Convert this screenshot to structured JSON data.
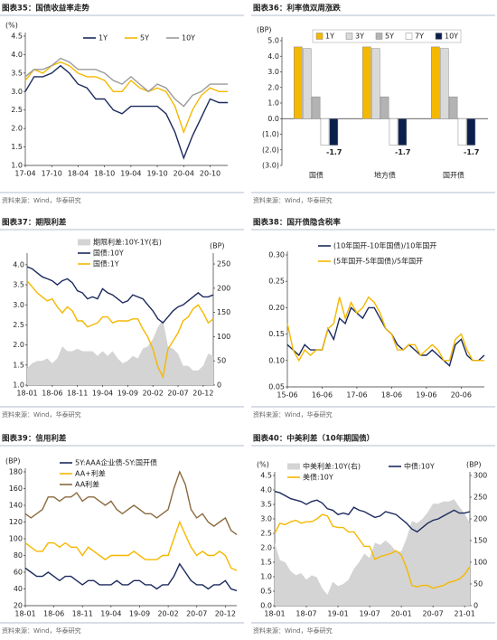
{
  "chart_data": [
    {
      "type": "line",
      "title": "图表35：国债收益率走势",
      "source": "资料来源：Wind，华泰研究",
      "ylabel": "(%)",
      "x": [
        "17-04",
        "17-06",
        "17-08",
        "17-10",
        "17-12",
        "18-02",
        "18-04",
        "18-06",
        "18-08",
        "18-10",
        "18-12",
        "19-02",
        "19-04",
        "19-06",
        "19-08",
        "19-10",
        "19-12",
        "20-02",
        "20-04",
        "20-06",
        "20-08",
        "20-10",
        "20-12",
        "21-02"
      ],
      "xticks": [
        "17-04",
        "17-10",
        "18-04",
        "18-10",
        "19-04",
        "19-10",
        "20-04",
        "20-10"
      ],
      "ylim": [
        1,
        4.5
      ],
      "yticks": [
        {
          "value": 1,
          "label": "1.0"
        },
        1.5,
        {
          "value": 2,
          "label": "2.0"
        },
        2.5,
        {
          "value": 3,
          "label": "3.0"
        },
        3.5,
        {
          "value": 4,
          "label": "4.0"
        },
        4.5
      ],
      "series": [
        {
          "name": "1Y",
          "color": "#1c2a5e",
          "values": [
            3.0,
            3.4,
            3.4,
            3.5,
            3.7,
            3.5,
            3.2,
            3.1,
            2.8,
            2.8,
            2.5,
            2.4,
            2.6,
            2.6,
            2.6,
            2.6,
            2.4,
            1.9,
            1.2,
            1.8,
            2.3,
            2.8,
            2.7,
            2.7
          ]
        },
        {
          "name": "5Y",
          "color": "#f5b800",
          "values": [
            3.3,
            3.6,
            3.5,
            3.7,
            3.8,
            3.7,
            3.5,
            3.4,
            3.4,
            3.3,
            3.0,
            3.0,
            3.3,
            3.1,
            3.0,
            3.1,
            3.0,
            2.6,
            1.9,
            2.5,
            2.9,
            3.1,
            3.0,
            3.0
          ]
        },
        {
          "name": "10Y",
          "color": "#9a9a9a",
          "values": [
            3.4,
            3.6,
            3.6,
            3.7,
            3.9,
            3.8,
            3.6,
            3.6,
            3.6,
            3.5,
            3.3,
            3.2,
            3.4,
            3.2,
            3.0,
            3.2,
            3.1,
            2.8,
            2.6,
            2.9,
            3.0,
            3.2,
            3.2,
            3.2
          ]
        }
      ]
    },
    {
      "type": "bar",
      "title": "图表36：利率债双周涨跌",
      "source": "资料来源：Wind，华泰研究",
      "ylabel": "(BP)",
      "categories": [
        "国债",
        "地方债",
        "国开债"
      ],
      "ylim": [
        -3,
        5
      ],
      "yticks": [
        {
          "value": 5,
          "label": "5.0"
        },
        {
          "value": 4,
          "label": "4.0"
        },
        {
          "value": 3,
          "label": "3.0"
        },
        {
          "value": 2,
          "label": "2.0"
        },
        {
          "value": 1,
          "label": "1.0"
        },
        {
          "value": 0,
          "label": "0.0"
        },
        {
          "value": -1,
          "label": "(1.0)"
        },
        {
          "value": -2,
          "label": "(2.0)"
        },
        {
          "value": -3,
          "label": "(3.0)"
        }
      ],
      "series": [
        {
          "name": "1Y",
          "color": "#f5b800",
          "values": [
            4.6,
            4.6,
            4.6
          ]
        },
        {
          "name": "3Y",
          "color": "#d9d9d9",
          "values": [
            4.5,
            4.5,
            4.5
          ]
        },
        {
          "name": "5Y",
          "color": "#b3b3b3",
          "values": [
            1.4,
            1.4,
            1.4
          ]
        },
        {
          "name": "7Y",
          "color": "#ffffff",
          "values": [
            -1.7,
            -1.7,
            -1.7
          ]
        },
        {
          "name": "10Y",
          "color": "#0b1f4d",
          "values": [
            -1.7,
            -1.7,
            -1.7
          ],
          "data_labels": true
        }
      ]
    },
    {
      "type": "line",
      "title": "图表37：期限利差",
      "source": "资料来源：Wind，华泰研究",
      "y2label": "(BP)",
      "x": [
        "18-01",
        "18-02",
        "18-03",
        "18-04",
        "18-05",
        "18-06",
        "18-07",
        "18-08",
        "18-09",
        "18-10",
        "18-11",
        "18-12",
        "19-01",
        "19-02",
        "19-03",
        "19-04",
        "19-05",
        "19-06",
        "19-07",
        "19-08",
        "19-09",
        "19-10",
        "19-11",
        "19-12",
        "20-01",
        "20-02",
        "20-03",
        "20-04",
        "20-05",
        "20-06",
        "20-07",
        "20-08",
        "20-09",
        "20-10",
        "20-11",
        "20-12",
        "21-01",
        "21-02"
      ],
      "xticks": [
        "18-01",
        "18-06",
        "18-11",
        "19-04",
        "19-09",
        "20-02",
        "20-07",
        "20-12"
      ],
      "ylim": [
        1,
        4.2
      ],
      "yticks": [
        {
          "value": 1,
          "label": "1.0"
        },
        1.5,
        {
          "value": 2,
          "label": "2.0"
        },
        2.5,
        {
          "value": 3,
          "label": "3.0"
        },
        3.5,
        {
          "value": 4,
          "label": "4.0"
        }
      ],
      "y2lim": [
        0,
        265
      ],
      "y2ticks": [
        0,
        50,
        100,
        150,
        200,
        250
      ],
      "series": [
        {
          "name": "期限利差:10Y-1Y(右)",
          "color": "#d4d4d4",
          "style": "area",
          "axis": "y2",
          "values": [
            35,
            45,
            50,
            50,
            55,
            45,
            55,
            80,
            70,
            70,
            75,
            70,
            70,
            70,
            60,
            70,
            60,
            70,
            55,
            45,
            50,
            60,
            55,
            75,
            80,
            95,
            120,
            135,
            80,
            75,
            65,
            40,
            40,
            30,
            30,
            40,
            65,
            60
          ]
        },
        {
          "name": "国债:10Y",
          "color": "#1c2a5e",
          "values": [
            3.95,
            3.9,
            3.8,
            3.7,
            3.65,
            3.6,
            3.5,
            3.6,
            3.65,
            3.55,
            3.35,
            3.3,
            3.15,
            3.2,
            3.15,
            3.4,
            3.3,
            3.25,
            3.15,
            3.05,
            3.1,
            3.25,
            3.2,
            3.15,
            3.0,
            2.85,
            2.65,
            2.55,
            2.7,
            2.85,
            2.95,
            3.0,
            3.1,
            3.2,
            3.3,
            3.2,
            3.2,
            3.25
          ]
        },
        {
          "name": "国债:1Y",
          "color": "#f5b800",
          "values": [
            3.6,
            3.45,
            3.3,
            3.2,
            3.1,
            3.15,
            2.95,
            2.8,
            2.95,
            2.85,
            2.6,
            2.6,
            2.45,
            2.5,
            2.55,
            2.7,
            2.7,
            2.55,
            2.6,
            2.6,
            2.6,
            2.65,
            2.65,
            2.4,
            2.2,
            1.9,
            1.45,
            1.2,
            1.9,
            2.1,
            2.3,
            2.6,
            2.7,
            2.9,
            3.0,
            2.8,
            2.55,
            2.65
          ]
        }
      ]
    },
    {
      "type": "line",
      "title": "图表38：国开债隐含税率",
      "source": "资料来源：Wind，华泰研究",
      "x": [
        "15-06",
        "15-08",
        "15-10",
        "15-12",
        "16-02",
        "16-04",
        "16-06",
        "16-08",
        "16-10",
        "16-12",
        "17-02",
        "17-04",
        "17-06",
        "17-08",
        "17-10",
        "17-12",
        "18-02",
        "18-04",
        "18-06",
        "18-08",
        "18-10",
        "18-12",
        "19-02",
        "19-04",
        "19-06",
        "19-08",
        "19-10",
        "19-12",
        "20-02",
        "20-04",
        "20-06",
        "20-08",
        "20-10",
        "20-12",
        "21-02"
      ],
      "xticks": [
        "15-06",
        "16-06",
        "17-06",
        "18-06",
        "19-06",
        "20-06"
      ],
      "ylim": [
        0.05,
        0.3
      ],
      "yticks": [
        0.05,
        {
          "value": 0.1,
          "label": "0.10"
        },
        0.15,
        {
          "value": 0.2,
          "label": "0.20"
        },
        0.25,
        {
          "value": 0.3,
          "label": "0.30"
        }
      ],
      "series": [
        {
          "name": "(10年国开-10年国债)/10年国开",
          "color": "#1c2a5e",
          "values": [
            0.13,
            0.12,
            0.11,
            0.13,
            0.12,
            0.12,
            0.12,
            0.16,
            0.14,
            0.18,
            0.17,
            0.2,
            0.19,
            0.18,
            0.2,
            0.2,
            0.18,
            0.16,
            0.15,
            0.13,
            0.12,
            0.13,
            0.12,
            0.11,
            0.11,
            0.12,
            0.11,
            0.1,
            0.09,
            0.13,
            0.14,
            0.11,
            0.1,
            0.1,
            0.11
          ]
        },
        {
          "name": "(5年国开-5年国债)/5年国开",
          "color": "#f5b800",
          "values": [
            0.17,
            0.12,
            0.1,
            0.12,
            0.11,
            0.12,
            0.12,
            0.16,
            0.17,
            0.22,
            0.18,
            0.21,
            0.19,
            0.2,
            0.22,
            0.21,
            0.19,
            0.16,
            0.15,
            0.12,
            0.12,
            0.13,
            0.13,
            0.11,
            0.12,
            0.13,
            0.12,
            0.1,
            0.1,
            0.14,
            0.15,
            0.12,
            0.1,
            0.1,
            0.1
          ]
        }
      ]
    },
    {
      "type": "line",
      "title": "图表39：信用利差",
      "source": "资料来源：Wind，华泰研究",
      "ylabel": "(BP)",
      "x": [
        "18-01",
        "18-02",
        "18-03",
        "18-04",
        "18-05",
        "18-06",
        "18-07",
        "18-08",
        "18-09",
        "18-10",
        "18-11",
        "18-12",
        "19-01",
        "19-02",
        "19-03",
        "19-04",
        "19-05",
        "19-06",
        "19-07",
        "19-08",
        "19-09",
        "19-10",
        "19-11",
        "19-12",
        "20-01",
        "20-02",
        "20-03",
        "20-04",
        "20-05",
        "20-06",
        "20-07",
        "20-08",
        "20-09",
        "20-10",
        "20-11",
        "20-12",
        "21-01",
        "21-02"
      ],
      "xticks": [
        "18-01",
        "18-06",
        "18-11",
        "19-04",
        "19-09",
        "20-02",
        "20-07",
        "20-12"
      ],
      "ylim": [
        20,
        180
      ],
      "yticks": [
        20,
        40,
        60,
        80,
        100,
        120,
        140,
        160,
        180
      ],
      "series": [
        {
          "name": "5Y:AAA企业债-5Y:国开债",
          "color": "#1c2a5e",
          "values": [
            65,
            60,
            55,
            55,
            60,
            55,
            50,
            55,
            55,
            50,
            45,
            50,
            50,
            45,
            45,
            45,
            50,
            45,
            45,
            50,
            50,
            45,
            45,
            40,
            45,
            45,
            55,
            70,
            60,
            50,
            45,
            45,
            40,
            45,
            45,
            50,
            40,
            38
          ]
        },
        {
          "name": "AA+利差",
          "color": "#f5b800",
          "values": [
            95,
            90,
            85,
            85,
            95,
            95,
            90,
            95,
            90,
            90,
            80,
            90,
            85,
            80,
            75,
            80,
            80,
            80,
            80,
            85,
            80,
            75,
            75,
            75,
            80,
            80,
            100,
            120,
            105,
            90,
            80,
            85,
            80,
            80,
            85,
            80,
            65,
            62
          ]
        },
        {
          "name": "AA利差",
          "color": "#8b6a3e",
          "values": [
            130,
            125,
            130,
            135,
            150,
            150,
            145,
            150,
            150,
            155,
            145,
            150,
            150,
            145,
            140,
            145,
            135,
            130,
            135,
            140,
            135,
            130,
            130,
            125,
            130,
            135,
            160,
            180,
            165,
            135,
            125,
            130,
            120,
            115,
            120,
            125,
            110,
            105
          ]
        }
      ]
    },
    {
      "type": "line",
      "title": "图表40：中美利差（10年期国债）",
      "source": "资料来源：Wind，华泰研究",
      "ylabel": "(%)",
      "y2label": "(BP)",
      "x": [
        "18-01",
        "18-02",
        "18-03",
        "18-04",
        "18-05",
        "18-06",
        "18-07",
        "18-08",
        "18-09",
        "18-10",
        "18-11",
        "18-12",
        "19-01",
        "19-02",
        "19-03",
        "19-04",
        "19-05",
        "19-06",
        "19-07",
        "19-08",
        "19-09",
        "19-10",
        "19-11",
        "19-12",
        "20-01",
        "20-02",
        "20-03",
        "20-04",
        "20-05",
        "20-06",
        "20-07",
        "20-08",
        "20-09",
        "20-10",
        "20-11",
        "20-12",
        "21-01",
        "21-02"
      ],
      "xticks": [
        "18-01",
        "18-07",
        "19-01",
        "19-07",
        "20-01",
        "20-07",
        "21-01"
      ],
      "ylim": [
        0,
        4.5
      ],
      "yticks": [
        {
          "value": 0,
          "label": "0.0"
        },
        0.5,
        {
          "value": 1,
          "label": "1.0"
        },
        1.5,
        {
          "value": 2,
          "label": "2.0"
        },
        2.5,
        {
          "value": 3,
          "label": "3.0"
        },
        3.5,
        {
          "value": 4,
          "label": "4.0"
        },
        4.5
      ],
      "y2lim": [
        0,
        300
      ],
      "y2ticks": [
        0,
        50,
        100,
        150,
        200,
        250,
        300
      ],
      "series": [
        {
          "name": "中美利差:10Y(右)",
          "color": "#d4d4d4",
          "style": "area",
          "axis": "y2",
          "values": [
            145,
            105,
            100,
            80,
            70,
            75,
            60,
            70,
            65,
            40,
            25,
            55,
            45,
            50,
            60,
            85,
            100,
            120,
            110,
            145,
            140,
            150,
            140,
            125,
            125,
            155,
            195,
            190,
            200,
            215,
            235,
            235,
            240,
            240,
            245,
            228,
            212,
            190
          ]
        },
        {
          "name": "中债:10Y",
          "color": "#1c2a5e",
          "values": [
            3.95,
            3.9,
            3.8,
            3.7,
            3.65,
            3.6,
            3.5,
            3.6,
            3.65,
            3.55,
            3.35,
            3.3,
            3.15,
            3.2,
            3.15,
            3.4,
            3.3,
            3.25,
            3.15,
            3.05,
            3.1,
            3.25,
            3.2,
            3.15,
            3.0,
            2.85,
            2.65,
            2.55,
            2.7,
            2.85,
            2.95,
            3.0,
            3.1,
            3.2,
            3.3,
            3.2,
            3.2,
            3.25
          ]
        },
        {
          "name": "美债:10Y",
          "color": "#f5b800",
          "values": [
            2.5,
            2.85,
            2.8,
            2.9,
            2.95,
            2.85,
            2.9,
            2.9,
            3.0,
            3.15,
            3.1,
            2.75,
            2.7,
            2.7,
            2.55,
            2.55,
            2.3,
            2.05,
            2.05,
            1.6,
            1.7,
            1.75,
            1.8,
            1.9,
            1.75,
            1.3,
            0.7,
            0.65,
            0.7,
            0.7,
            0.6,
            0.65,
            0.7,
            0.8,
            0.85,
            0.92,
            1.08,
            1.35
          ]
        }
      ]
    }
  ]
}
